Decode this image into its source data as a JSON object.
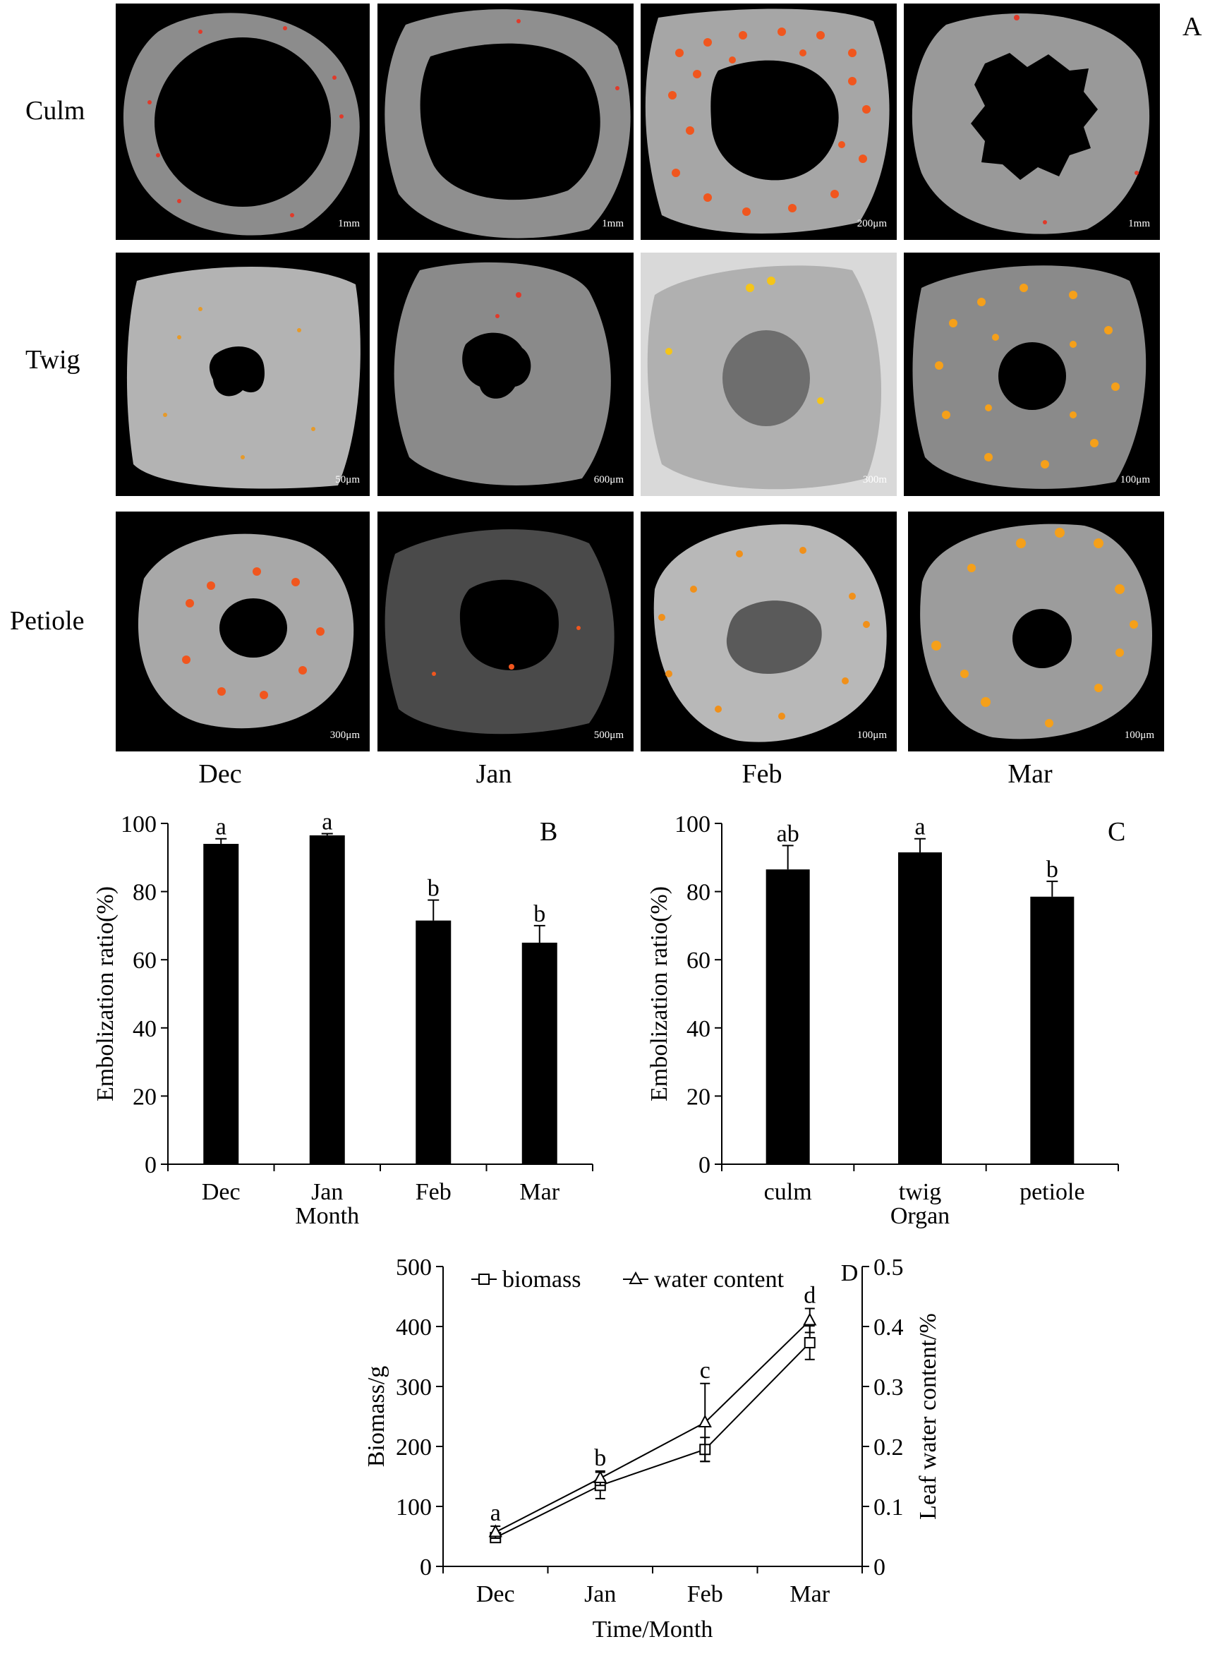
{
  "panel_a": {
    "letter": "A",
    "rows": [
      {
        "label": "Culm",
        "scales": [
          "1mm",
          "1mm",
          "200μm",
          "1mm"
        ]
      },
      {
        "label": "Twig",
        "scales": [
          "50μm",
          "600μm",
          "300m",
          "100μm"
        ]
      },
      {
        "label": "Petiole",
        "scales": [
          "300μm",
          "500μm",
          "100μm",
          "100μm"
        ]
      }
    ],
    "columns": [
      "Dec",
      "Jan",
      "Feb",
      "Mar"
    ]
  },
  "chart_data": [
    {
      "id": "B",
      "type": "bar",
      "letter": "B",
      "categories": [
        "Dec",
        "Jan",
        "Feb",
        "Mar"
      ],
      "values": [
        94,
        96.5,
        71.5,
        65
      ],
      "errors": [
        1.5,
        0.5,
        6,
        5
      ],
      "labels": [
        "a",
        "a",
        "b",
        "b"
      ],
      "xlabel": "Month",
      "ylabel": "Embolization ratio(%)",
      "ylim": [
        0,
        100
      ],
      "yticks": [
        0,
        20,
        40,
        60,
        80,
        100
      ],
      "bar_color": "#000000"
    },
    {
      "id": "C",
      "type": "bar",
      "letter": "C",
      "categories": [
        "culm",
        "twig",
        "petiole"
      ],
      "values": [
        86.5,
        91.5,
        78.5
      ],
      "errors": [
        7,
        4,
        4.5
      ],
      "labels": [
        "ab",
        "a",
        "b"
      ],
      "xlabel": "Organ",
      "ylabel": "Embolization ratio(%)",
      "ylim": [
        0,
        100
      ],
      "yticks": [
        0,
        20,
        40,
        60,
        80,
        100
      ],
      "bar_color": "#000000"
    },
    {
      "id": "D",
      "type": "line",
      "letter": "D",
      "categories": [
        "Dec",
        "Jan",
        "Feb",
        "Mar"
      ],
      "series": [
        {
          "name": "biomass",
          "axis": "left",
          "marker": "square",
          "values": [
            48,
            135,
            195,
            373
          ],
          "errors": [
            8,
            22,
            20,
            28
          ]
        },
        {
          "name": "water content",
          "axis": "right",
          "marker": "triangle",
          "values": [
            0.057,
            0.147,
            0.24,
            0.41
          ],
          "errors": [
            0.01,
            0.012,
            0.065,
            0.02
          ]
        }
      ],
      "labels": [
        "a",
        "b",
        "c",
        "d"
      ],
      "xlabel": "Time/Month",
      "ylabel": "Biomass/g",
      "ylabel_right": "Leaf water content/%",
      "ylim": [
        0,
        500
      ],
      "ylim_right": [
        0,
        0.5
      ],
      "yticks": [
        0,
        100,
        200,
        300,
        400,
        500
      ],
      "yticks_right": [
        "0",
        "0.1",
        "0.2",
        "0.3",
        "0.4",
        "0.5"
      ],
      "legend": "top"
    }
  ]
}
